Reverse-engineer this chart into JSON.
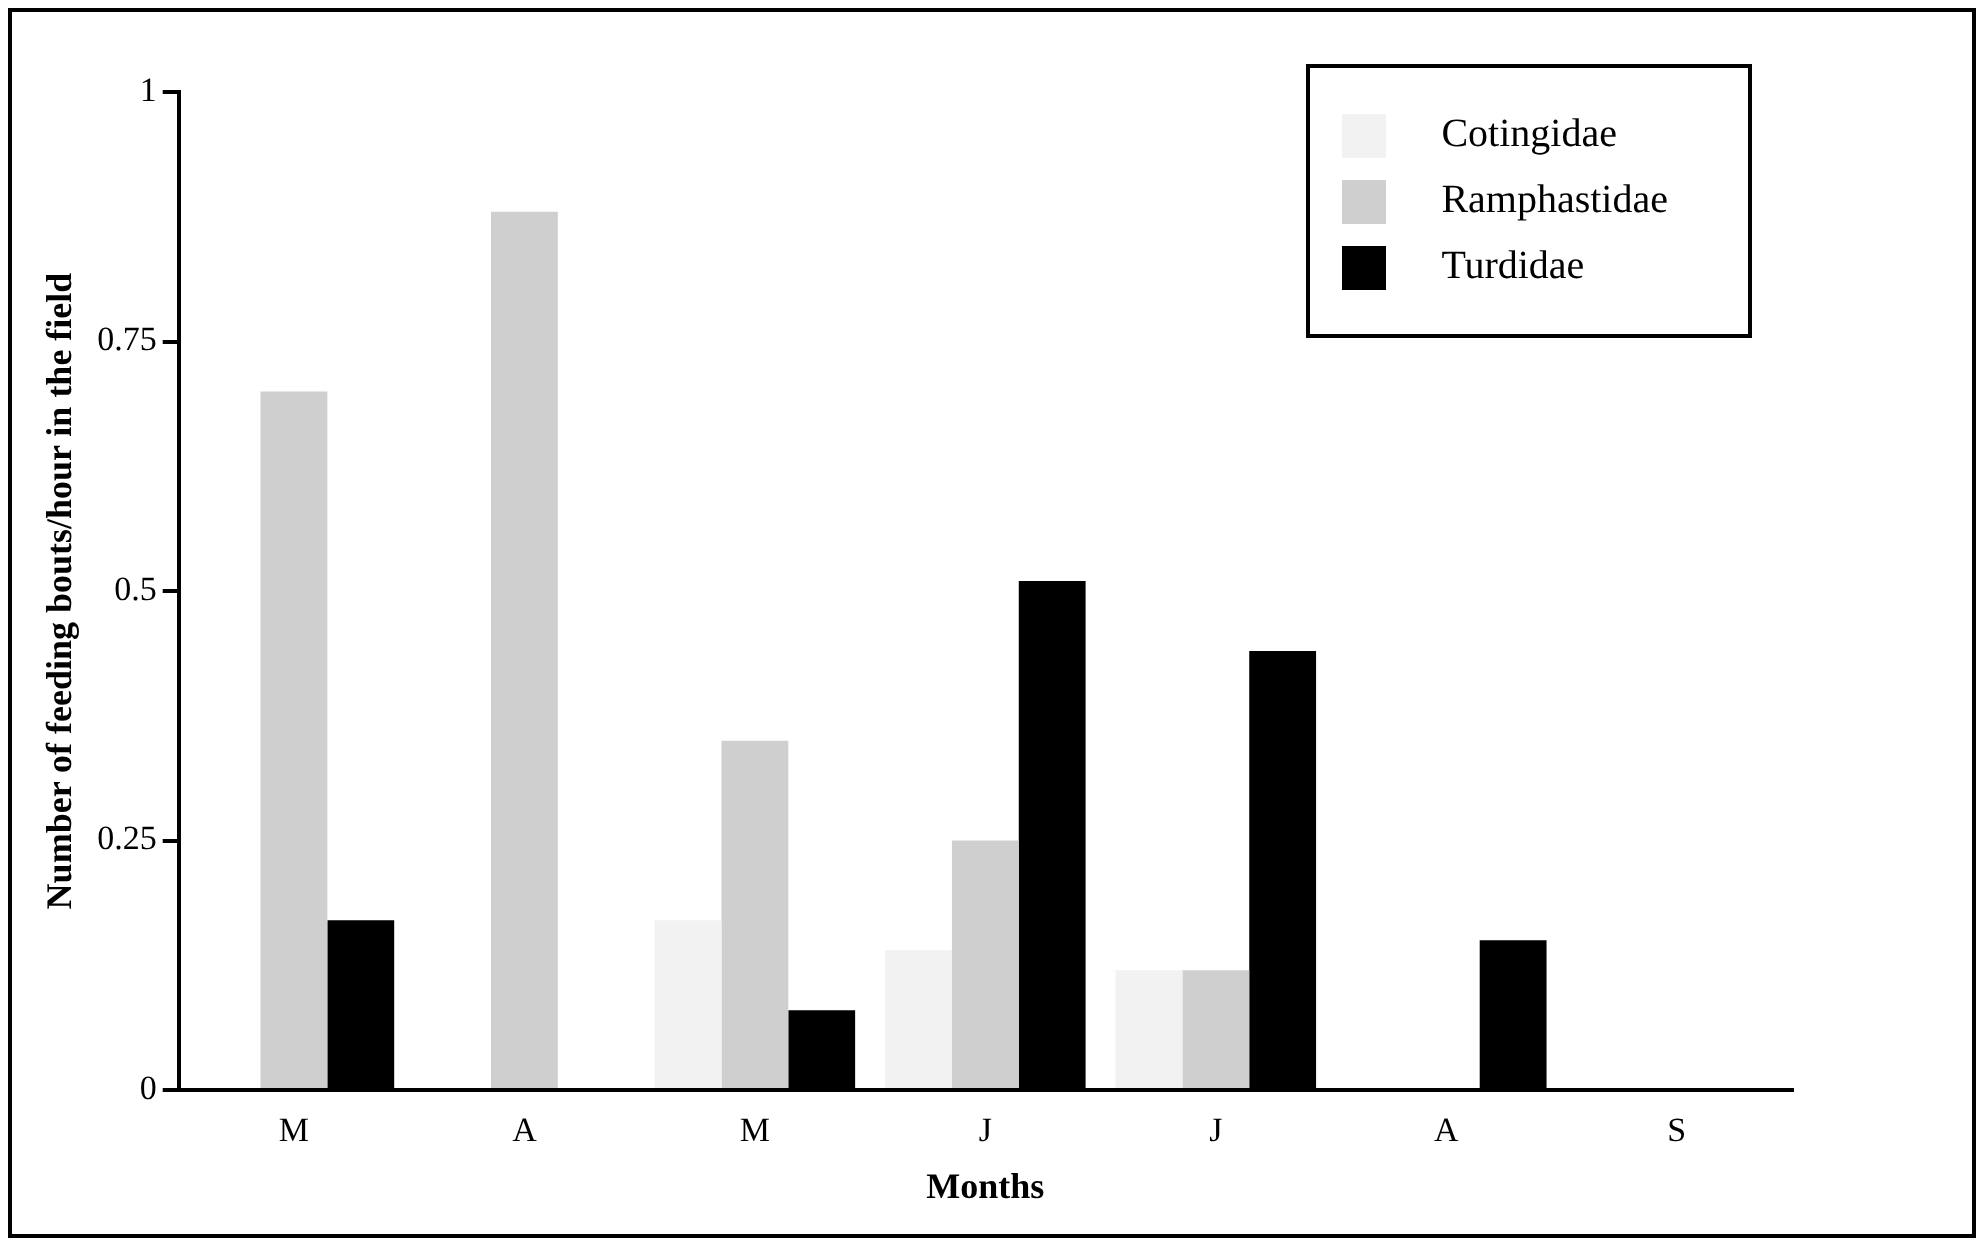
{
  "chart_data": {
    "type": "bar",
    "xlabel": "Months",
    "ylabel": "Number of feeding bouts/hour in the field",
    "categories": [
      "M",
      "A",
      "M",
      "J",
      "J",
      "A",
      "S"
    ],
    "series": [
      {
        "name": "Cotingidae",
        "color": "#f2f2f2",
        "values": [
          null,
          null,
          0.17,
          0.14,
          0.12,
          null,
          null
        ]
      },
      {
        "name": "Ramphastidae",
        "color": "#cfcfcf",
        "values": [
          0.7,
          0.88,
          0.35,
          0.25,
          0.12,
          null,
          null
        ]
      },
      {
        "name": "Turdidae",
        "color": "#000000",
        "values": [
          0.17,
          null,
          0.08,
          0.51,
          0.44,
          0.15,
          null
        ]
      }
    ],
    "ylim": [
      0,
      1
    ],
    "yticks": [
      0,
      0.25,
      0.5,
      0.75,
      1
    ],
    "grid": false,
    "legend": "top right"
  }
}
